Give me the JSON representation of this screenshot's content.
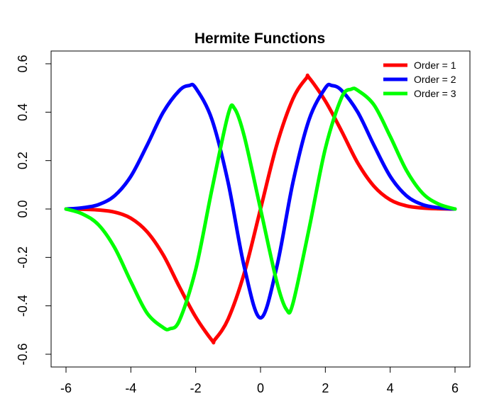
{
  "chart_data": {
    "type": "line",
    "title": "Hermite Functions",
    "xlabel": "",
    "ylabel": "",
    "xlim": [
      -6,
      6
    ],
    "ylim": [
      -0.6,
      0.6
    ],
    "xticks": [
      "-6",
      "-4",
      "-2",
      "0",
      "2",
      "4",
      "6"
    ],
    "yticks": [
      "-0.6",
      "-0.4",
      "-0.2",
      "0.0",
      "0.2",
      "0.4",
      "0.6"
    ],
    "grid": false,
    "legend_position": "top-right",
    "series": [
      {
        "name": "Order = 1",
        "color": "#ff0000",
        "x": [
          -6,
          -5.5,
          -5,
          -4.5,
          -4,
          -3.5,
          -3,
          -2.5,
          -2,
          -1.5,
          -1.41,
          -1,
          -0.5,
          0,
          0.5,
          1,
          1.41,
          1.5,
          2,
          2.5,
          3,
          3.5,
          4,
          4.5,
          5,
          5.5,
          6
        ],
        "y": [
          0.0,
          -0.001,
          -0.004,
          -0.013,
          -0.038,
          -0.094,
          -0.19,
          -0.322,
          -0.446,
          -0.542,
          -0.54,
          -0.455,
          -0.264,
          0.0,
          0.264,
          0.455,
          0.54,
          0.542,
          0.446,
          0.322,
          0.19,
          0.094,
          0.038,
          0.013,
          0.004,
          0.001,
          0.0
        ]
      },
      {
        "name": "Order = 2",
        "color": "#0000ff",
        "x": [
          -6,
          -5.5,
          -5,
          -4.5,
          -4,
          -3.5,
          -3,
          -2.5,
          -2.2,
          -2,
          -1.5,
          -1,
          -0.5,
          0,
          0.5,
          1,
          1.5,
          2,
          2.2,
          2.5,
          3,
          3.5,
          4,
          4.5,
          5,
          5.5,
          6
        ],
        "y": [
          0.0,
          0.005,
          0.018,
          0.055,
          0.135,
          0.263,
          0.4,
          0.49,
          0.51,
          0.5,
          0.37,
          0.11,
          -0.24,
          -0.45,
          -0.24,
          0.11,
          0.37,
          0.5,
          0.51,
          0.49,
          0.4,
          0.263,
          0.135,
          0.055,
          0.018,
          0.005,
          0.0
        ]
      },
      {
        "name": "Order = 3",
        "color": "#00ff00",
        "x": [
          -6,
          -5.5,
          -5,
          -4.5,
          -4,
          -3.5,
          -3,
          -2.8,
          -2.5,
          -2,
          -1.5,
          -1,
          -0.8,
          -0.5,
          0,
          0.5,
          0.8,
          1,
          1.5,
          2,
          2.5,
          2.8,
          3,
          3.5,
          4,
          4.5,
          5,
          5.5,
          6
        ],
        "y": [
          0.0,
          -0.02,
          -0.065,
          -0.16,
          -0.3,
          -0.43,
          -0.49,
          -0.495,
          -0.46,
          -0.25,
          0.08,
          0.39,
          0.415,
          0.3,
          0.0,
          -0.3,
          -0.415,
          -0.39,
          -0.08,
          0.25,
          0.46,
          0.495,
          0.49,
          0.43,
          0.3,
          0.16,
          0.065,
          0.02,
          0.0
        ]
      }
    ]
  }
}
